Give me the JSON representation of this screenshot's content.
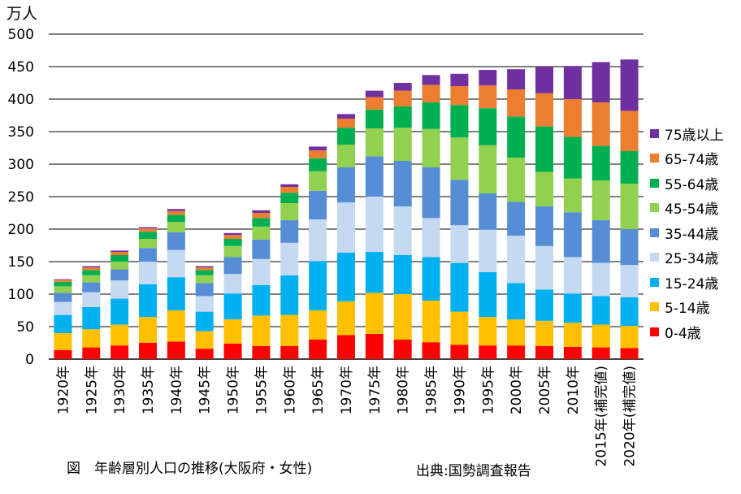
{
  "chart_data": {
    "type": "bar",
    "stacked": true,
    "unit_label": "万人",
    "caption": "図　年齢層別人口の推移(大阪府・女性)",
    "source": "出典:国勢調査報告",
    "ylim": [
      0,
      500
    ],
    "yticks": [
      0,
      50,
      100,
      150,
      200,
      250,
      300,
      350,
      400,
      450,
      500
    ],
    "grid": true,
    "legend_position": "right",
    "categories": [
      "1920年",
      "1925年",
      "1930年",
      "1935年",
      "1940年",
      "1945年",
      "1950年",
      "1955年",
      "1960年",
      "1965年",
      "1970年",
      "1975年",
      "1980年",
      "1985年",
      "1990年",
      "1995年",
      "2000年",
      "2005年",
      "2010年",
      "2015年(補完値)",
      "2020年(補完値)"
    ],
    "series": [
      {
        "name": "0-4歳",
        "color": "#ff0000",
        "values": [
          14,
          18,
          21,
          25,
          27,
          16,
          24,
          20,
          20,
          30,
          37,
          39,
          30,
          26,
          22,
          21,
          21,
          20,
          19,
          18,
          17
        ]
      },
      {
        "name": "5-14歳",
        "color": "#ffc000",
        "values": [
          26,
          28,
          32,
          40,
          48,
          27,
          37,
          47,
          48,
          45,
          52,
          63,
          70,
          64,
          51,
          44,
          40,
          39,
          37,
          35,
          34
        ]
      },
      {
        "name": "15-24歳",
        "color": "#00b0f0",
        "values": [
          28,
          34,
          40,
          50,
          51,
          30,
          40,
          47,
          61,
          76,
          75,
          63,
          60,
          67,
          75,
          69,
          56,
          48,
          45,
          44,
          44
        ]
      },
      {
        "name": "25-34歳",
        "color": "#c5d9f1",
        "values": [
          20,
          23,
          28,
          35,
          42,
          24,
          30,
          40,
          50,
          64,
          77,
          85,
          75,
          60,
          58,
          65,
          73,
          67,
          56,
          51,
          50
        ]
      },
      {
        "name": "35-44歳",
        "color": "#558ed5",
        "values": [
          14,
          15,
          17,
          21,
          27,
          20,
          26,
          30,
          35,
          44,
          54,
          62,
          70,
          78,
          70,
          56,
          52,
          61,
          69,
          66,
          55
        ]
      },
      {
        "name": "45-54歳",
        "color": "#92d050",
        "values": [
          10,
          11,
          12,
          14,
          16,
          12,
          17,
          20,
          26,
          30,
          35,
          43,
          51,
          59,
          65,
          74,
          68,
          53,
          52,
          61,
          70
        ]
      },
      {
        "name": "55-64歳",
        "color": "#00b050",
        "values": [
          7,
          8,
          10,
          11,
          11,
          8,
          11,
          13,
          16,
          20,
          26,
          29,
          33,
          41,
          50,
          57,
          63,
          70,
          64,
          53,
          50
        ]
      },
      {
        "name": "65-74歳",
        "color": "#ed7d31",
        "values": [
          3,
          4,
          5,
          5,
          6,
          4,
          6,
          8,
          9,
          12,
          14,
          19,
          24,
          27,
          29,
          35,
          42,
          51,
          58,
          67,
          62
        ]
      },
      {
        "name": "75歳以上",
        "color": "#7030a0",
        "values": [
          1,
          2,
          2,
          2,
          3,
          2,
          3,
          4,
          4,
          6,
          7,
          10,
          12,
          15,
          19,
          24,
          31,
          41,
          51,
          62,
          79
        ]
      }
    ]
  }
}
